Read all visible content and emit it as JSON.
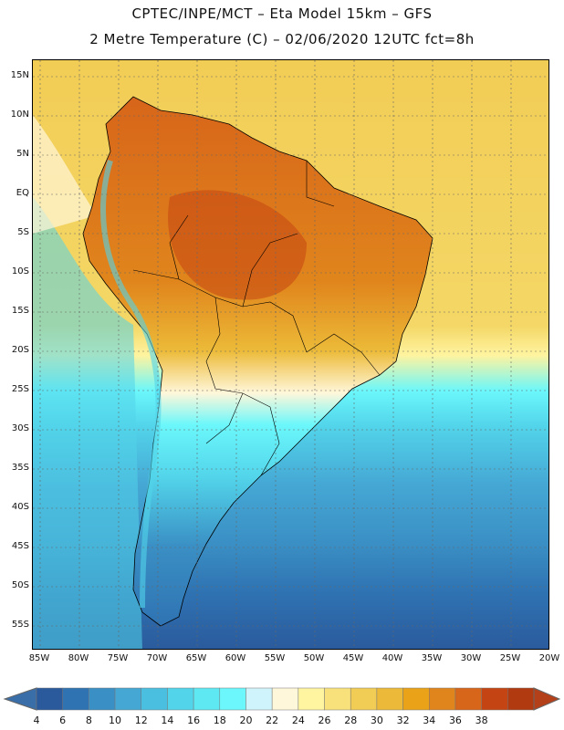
{
  "header": {
    "title_line1": "CPTEC/INPE/MCT –  Eta Model 15km – GFS",
    "title_line2": "2 Metre Temperature (C) – 02/06/2020 12UTC fct=8h"
  },
  "map": {
    "region": "South America",
    "lat_labels": [
      "15N",
      "10N",
      "5N",
      "EQ",
      "5S",
      "10S",
      "15S",
      "20S",
      "25S",
      "30S",
      "35S",
      "40S",
      "45S",
      "50S",
      "55S"
    ],
    "lon_labels": [
      "85W",
      "80W",
      "75W",
      "70W",
      "65W",
      "60W",
      "55W",
      "50W",
      "45W",
      "40W",
      "35W",
      "30W",
      "25W",
      "20W"
    ]
  },
  "colorbar": {
    "labels": [
      "4",
      "6",
      "8",
      "10",
      "12",
      "14",
      "16",
      "18",
      "20",
      "22",
      "24",
      "26",
      "28",
      "30",
      "32",
      "34",
      "36",
      "38"
    ],
    "colors": [
      "#2a5a9c",
      "#2f73b3",
      "#3a8fc4",
      "#45a7d4",
      "#4bbfdf",
      "#52d4ea",
      "#5ee8f2",
      "#6bf7fb",
      "#d0f4fb",
      "#fff7da",
      "#fff4a0",
      "#f8e17a",
      "#f2cd55",
      "#ecba38",
      "#eaa318",
      "#e0851c",
      "#d7651a",
      "#c44513",
      "#b13a10"
    ],
    "under_color": "#3a6ea8",
    "over_color": "#b4401a"
  }
}
